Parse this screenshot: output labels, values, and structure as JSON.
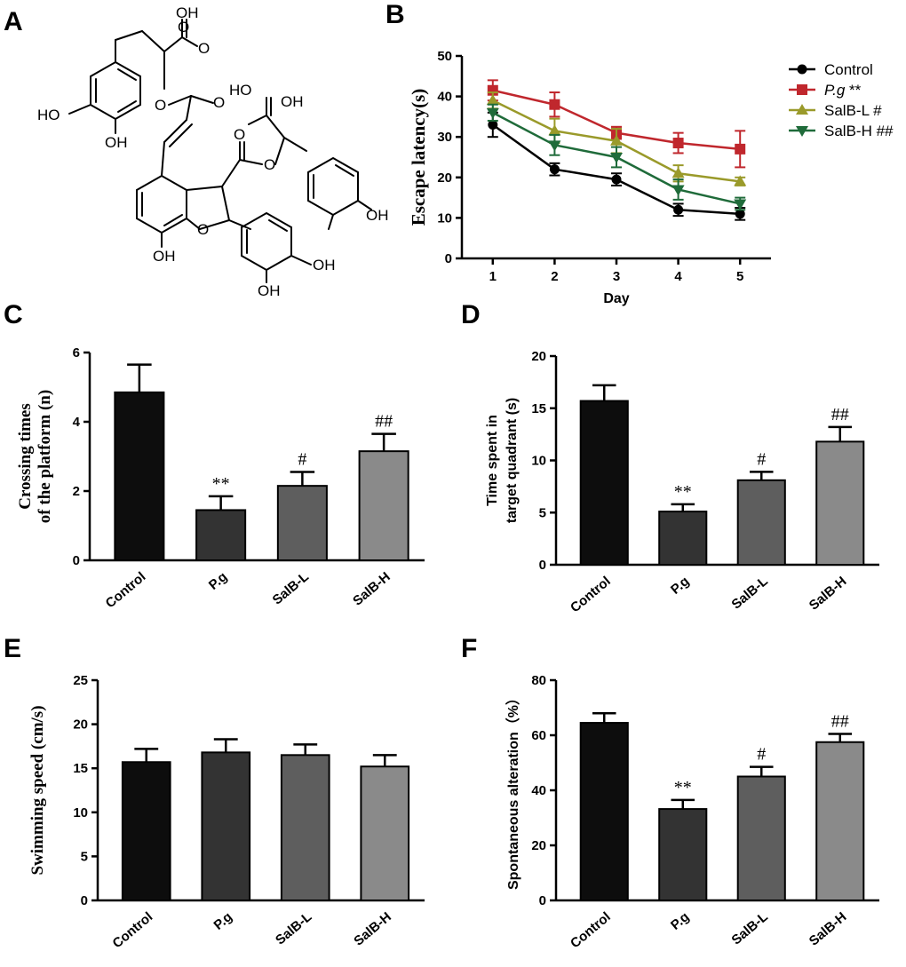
{
  "panel_labels": [
    "A",
    "B",
    "C",
    "D",
    "E",
    "F"
  ],
  "structure_labels": [
    "OH",
    "HO",
    "OH",
    "O",
    "O",
    "O",
    "O",
    "HO",
    "O",
    "O",
    "OH",
    "O",
    "OH",
    "OH",
    "OH",
    "OH"
  ],
  "colors": {
    "control": "#000000",
    "pg": "#c0272d",
    "salbl": "#9a9a2a",
    "salbh": "#1f6b3a",
    "bars": [
      "#0d0d0d",
      "#333333",
      "#5e5e5e",
      "#8a8a8a"
    ]
  },
  "chart_data": [
    {
      "id": "B",
      "type": "line",
      "xlabel": "Day",
      "ylabel": "Escape latency(s)",
      "x": [
        1,
        2,
        3,
        4,
        5
      ],
      "xlim": [
        0.5,
        5.5
      ],
      "ylim": [
        0,
        50
      ],
      "yticks": [
        0,
        10,
        20,
        30,
        40,
        50
      ],
      "legend_position": "top-right",
      "series": [
        {
          "key": "control",
          "name": "Control",
          "suffix": "",
          "marker": "circle",
          "values": [
            33,
            22,
            19.5,
            12,
            11
          ],
          "errors": [
            3,
            1.5,
            1.5,
            1.5,
            1.5
          ]
        },
        {
          "key": "pg",
          "name": "P.g",
          "suffix": "**",
          "marker": "square",
          "values": [
            41.5,
            38,
            31,
            28.5,
            27
          ],
          "errors": [
            2.5,
            3,
            1.5,
            2.5,
            4.5
          ]
        },
        {
          "key": "salbl",
          "name": "SalB-L",
          "suffix": "#",
          "marker": "triangle-up",
          "values": [
            39,
            31.5,
            29,
            21,
            19
          ],
          "errors": [
            2,
            3,
            3,
            2,
            1
          ]
        },
        {
          "key": "salbh",
          "name": "SalB-H",
          "suffix": "##",
          "marker": "triangle-down",
          "values": [
            36,
            28,
            25,
            17,
            13.5
          ],
          "errors": [
            2,
            2.5,
            2.5,
            2.5,
            1.5
          ]
        }
      ]
    },
    {
      "id": "C",
      "type": "bar",
      "ylabel_lines": [
        "Crossing times",
        "of the platform (n)"
      ],
      "categories": [
        "Control",
        "P.g",
        "SalB-L",
        "SalB-H"
      ],
      "values": [
        4.85,
        1.45,
        2.15,
        3.15
      ],
      "errors": [
        0.8,
        0.4,
        0.4,
        0.5
      ],
      "annotations": [
        "",
        "**",
        "#",
        "##"
      ],
      "ylim": [
        0,
        6
      ],
      "yticks": [
        0,
        2,
        4,
        6
      ]
    },
    {
      "id": "D",
      "type": "bar",
      "ylabel_lines": [
        "Time spent in",
        "target quadrant (s)"
      ],
      "categories": [
        "Control",
        "P.g",
        "SalB-L",
        "SalB-H"
      ],
      "values": [
        15.7,
        5.1,
        8.1,
        11.8
      ],
      "errors": [
        1.5,
        0.7,
        0.8,
        1.4
      ],
      "annotations": [
        "",
        "**",
        "#",
        "##"
      ],
      "ylim": [
        0,
        20
      ],
      "yticks": [
        0,
        5,
        10,
        15,
        20
      ]
    },
    {
      "id": "E",
      "type": "bar",
      "ylabel_lines": [
        "Swimming speed (cm/s)"
      ],
      "categories": [
        "Control",
        "P.g",
        "SalB-L",
        "SalB-H"
      ],
      "values": [
        15.7,
        16.8,
        16.5,
        15.2
      ],
      "errors": [
        1.5,
        1.5,
        1.2,
        1.3
      ],
      "annotations": [
        "",
        "",
        "",
        ""
      ],
      "ylim": [
        0,
        25
      ],
      "yticks": [
        0,
        5,
        10,
        15,
        20,
        25
      ]
    },
    {
      "id": "F",
      "type": "bar",
      "ylabel_lines": [
        "Spontaneous alteration（%）"
      ],
      "categories": [
        "Control",
        "P.g",
        "SalB-L",
        "SalB-H"
      ],
      "values": [
        64.5,
        33.2,
        45,
        57.5
      ],
      "errors": [
        3.5,
        3.3,
        3.5,
        3
      ],
      "annotations": [
        "",
        "**",
        "#",
        "##"
      ],
      "ylim": [
        0,
        80
      ],
      "yticks": [
        0,
        20,
        40,
        60,
        80
      ]
    }
  ]
}
